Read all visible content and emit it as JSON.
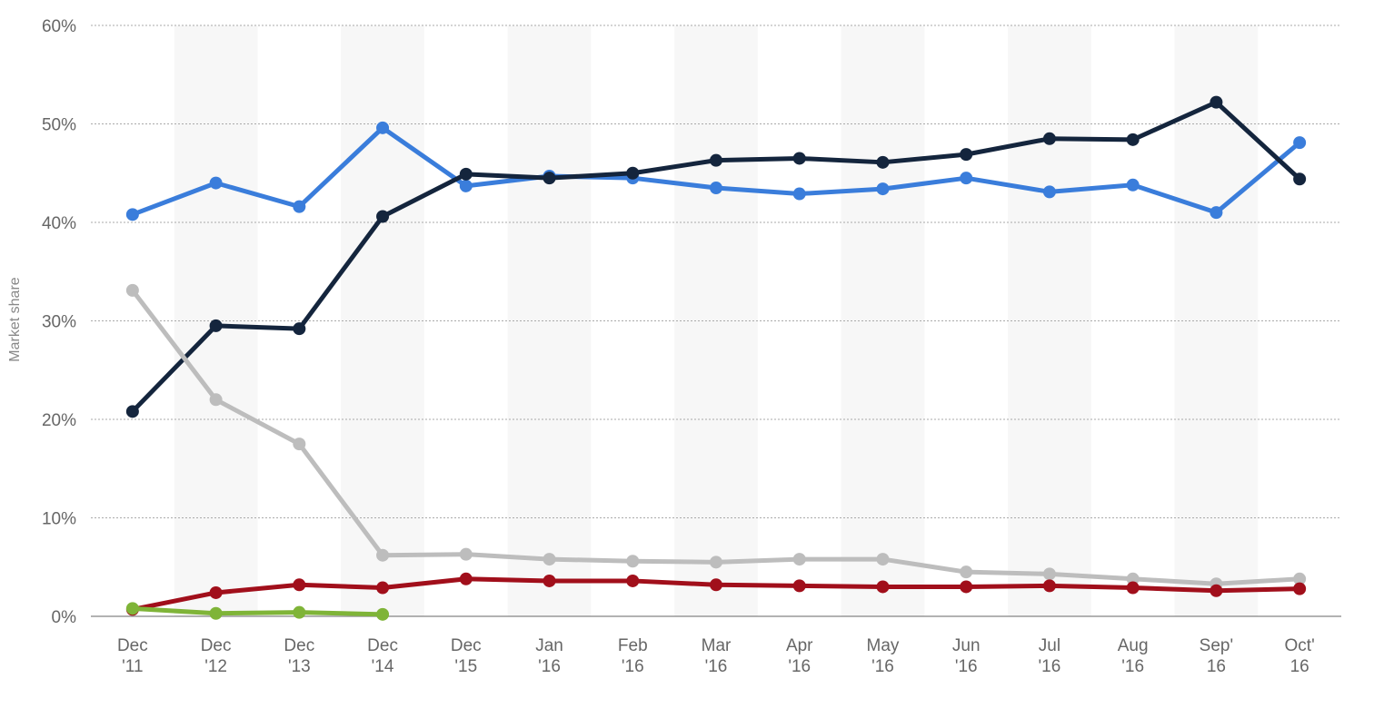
{
  "chart_data": {
    "type": "line",
    "y_label": "Market share",
    "categories": [
      "Dec\n'11",
      "Dec\n'12",
      "Dec\n'13",
      "Dec\n'14",
      "Dec\n'15",
      "Jan\n'16",
      "Feb\n'16",
      "Mar\n'16",
      "Apr\n'16",
      "May\n'16",
      "Jun\n'16",
      "Jul\n'16",
      "Aug\n'16",
      "Sep'\n16",
      "Oct'\n16"
    ],
    "series": [
      {
        "color": "#3a7ddb",
        "values": [
          40.8,
          44.0,
          41.6,
          49.6,
          43.7,
          44.7,
          44.5,
          43.5,
          42.9,
          43.4,
          44.5,
          43.1,
          43.8,
          41.0,
          48.1
        ]
      },
      {
        "color": "#14253d",
        "values": [
          20.8,
          29.5,
          29.2,
          40.6,
          44.9,
          44.5,
          45.0,
          46.3,
          46.5,
          46.1,
          46.9,
          48.5,
          48.4,
          52.2,
          44.4
        ]
      },
      {
        "color": "#bdbdbd",
        "values": [
          33.1,
          22.0,
          17.5,
          6.2,
          6.3,
          5.8,
          5.6,
          5.5,
          5.8,
          5.8,
          4.5,
          4.3,
          3.8,
          3.3,
          3.8
        ]
      },
      {
        "color": "#a10f1b",
        "values": [
          0.7,
          2.4,
          3.2,
          2.9,
          3.8,
          3.6,
          3.6,
          3.2,
          3.1,
          3.0,
          3.0,
          3.1,
          2.9,
          2.6,
          2.8
        ]
      },
      {
        "color": "#7fb438",
        "values": [
          0.8,
          0.3,
          0.4,
          0.2,
          null,
          null,
          null,
          null,
          null,
          null,
          null,
          null,
          null,
          null,
          null
        ]
      }
    ],
    "ylim": [
      0,
      60
    ],
    "yticks": [
      {
        "value": 0,
        "label": "0%"
      },
      {
        "value": 10,
        "label": "10%"
      },
      {
        "value": 20,
        "label": "20%"
      },
      {
        "value": 30,
        "label": "30%"
      },
      {
        "value": 40,
        "label": "40%"
      },
      {
        "value": 50,
        "label": "50%"
      },
      {
        "value": 60,
        "label": "60%"
      }
    ],
    "grid": true
  }
}
